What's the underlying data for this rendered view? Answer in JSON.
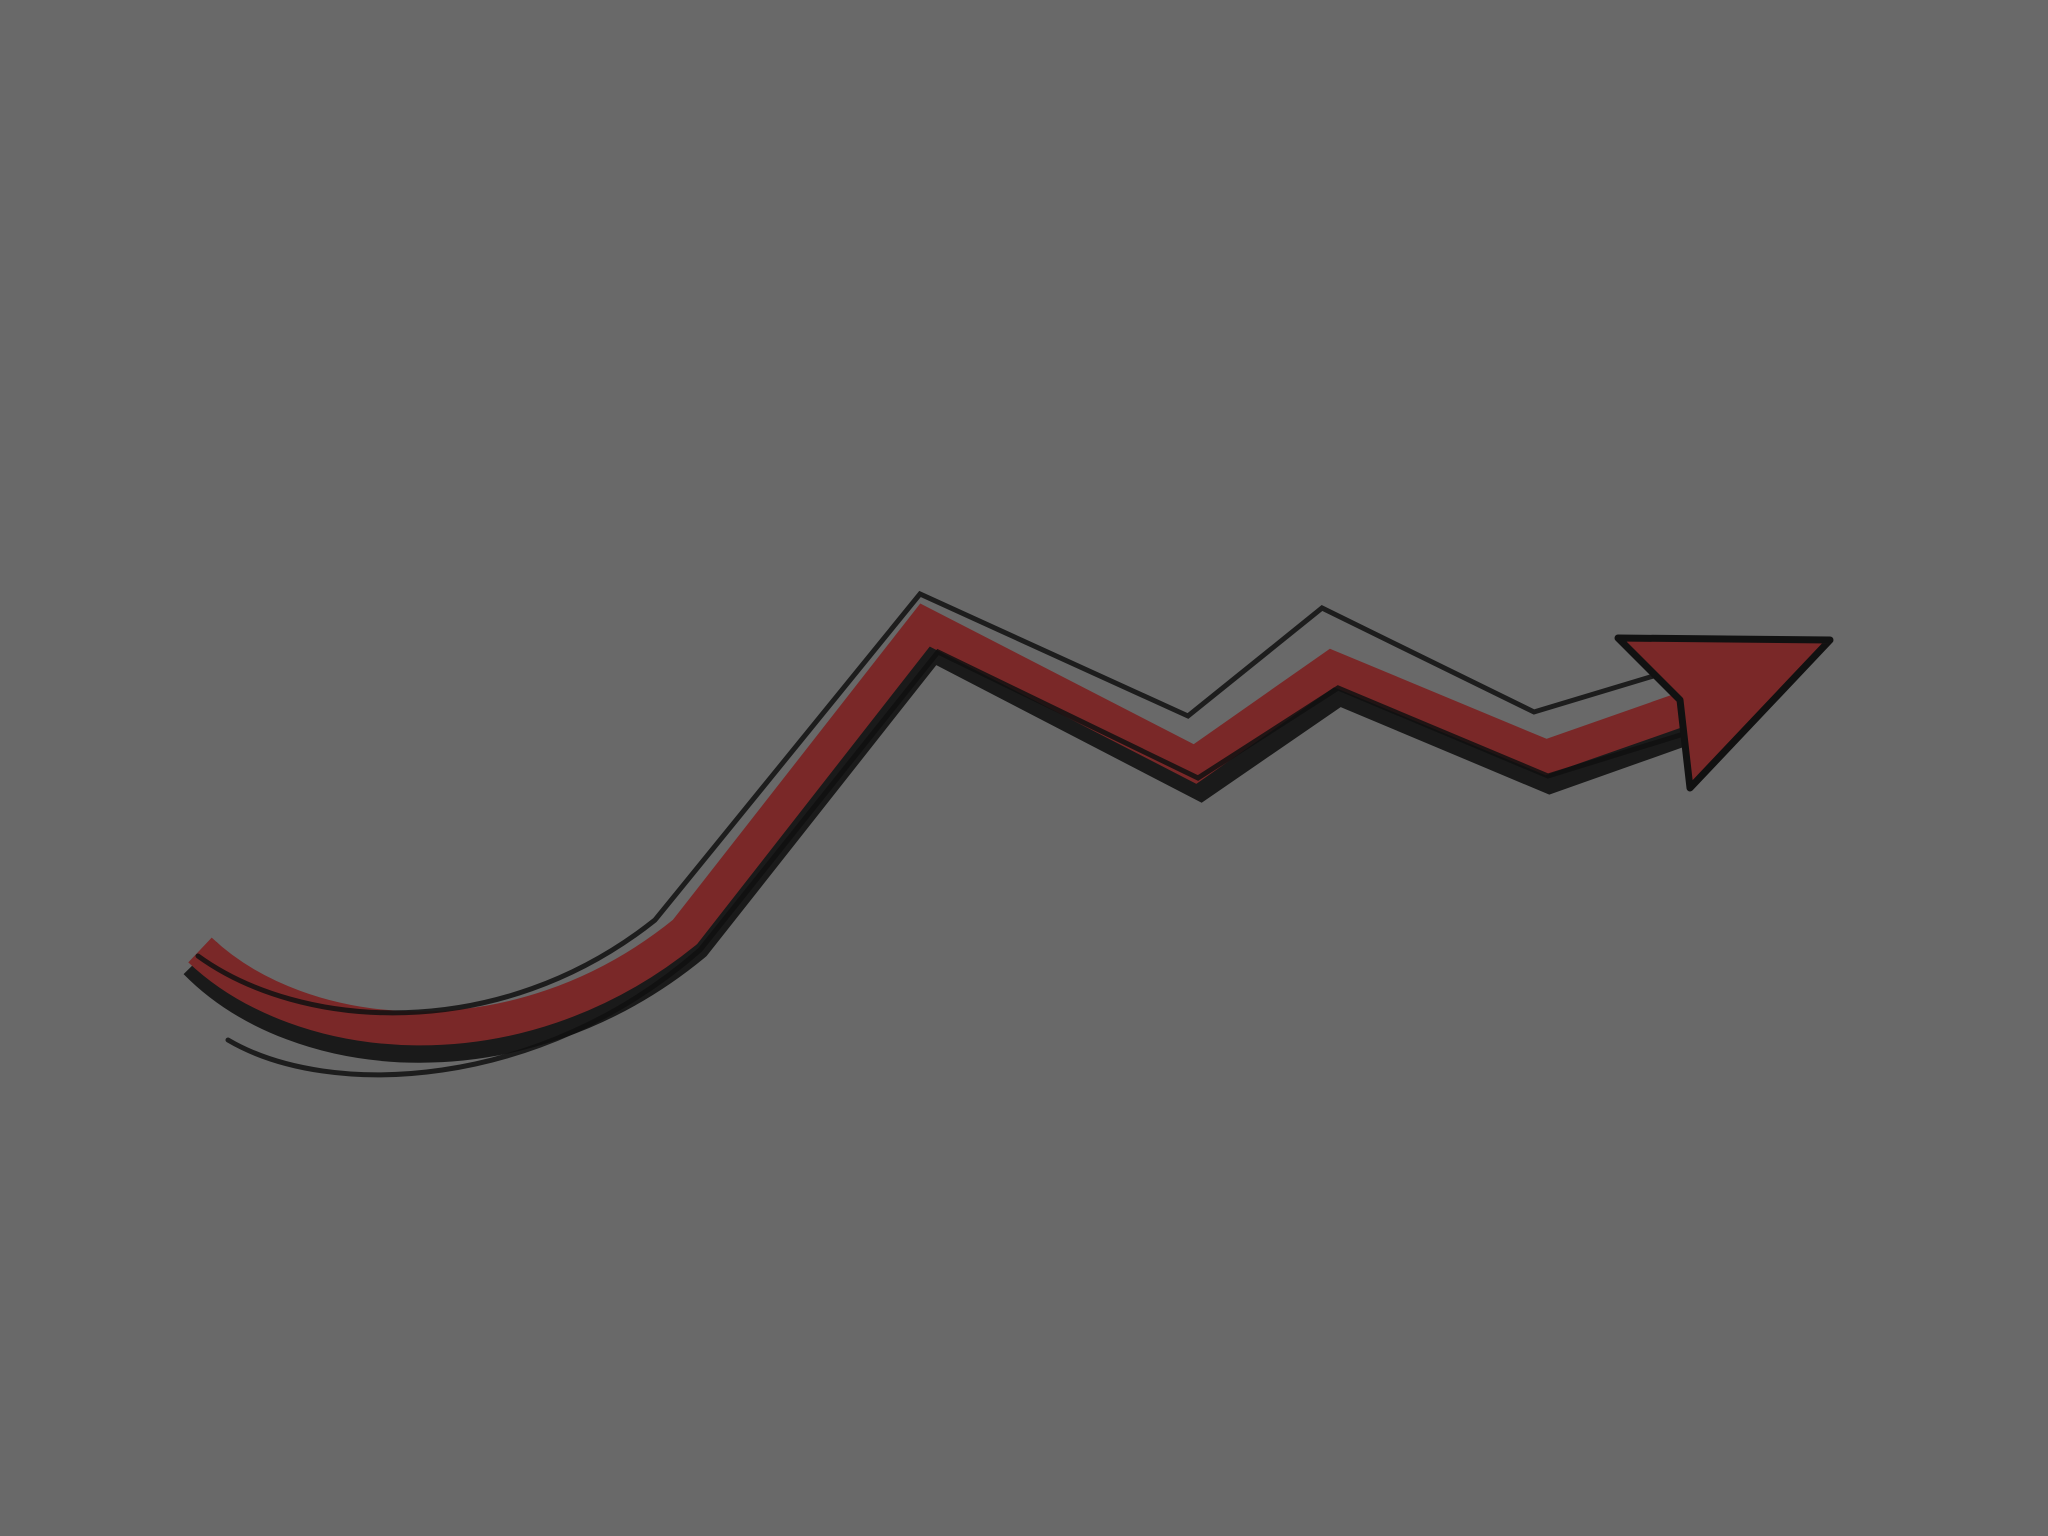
{
  "colors": {
    "background": "#696969",
    "arrow_fill": "#7a2828",
    "arrow_outline": "#111111",
    "arrow_shadow": "#1a1a1a"
  },
  "illustration": {
    "subject": "arrow-icon",
    "style": "hand-drawn"
  }
}
